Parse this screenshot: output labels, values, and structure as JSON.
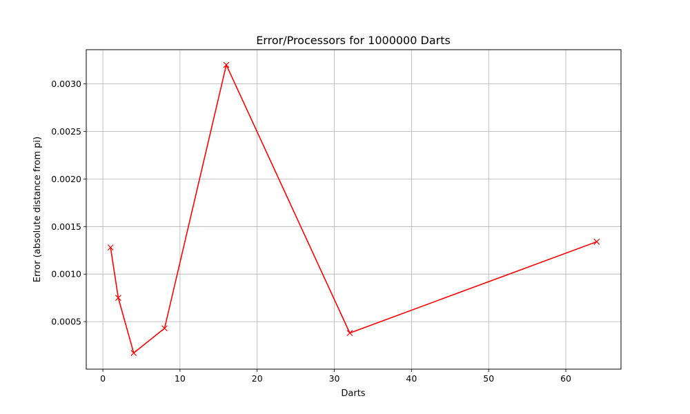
{
  "chart_data": {
    "type": "line",
    "title": "Error/Processors for 1000000 Darts",
    "xlabel": "Darts",
    "ylabel": "Error (absolute distance from pi)",
    "xlim": [
      -2.15,
      67.15
    ],
    "ylim": [
      0.0,
      0.00336
    ],
    "xticks": [
      0,
      10,
      20,
      30,
      40,
      50,
      60
    ],
    "xtick_labels": [
      "0",
      "10",
      "20",
      "30",
      "40",
      "50",
      "60"
    ],
    "yticks": [
      0.0005,
      0.001,
      0.0015,
      0.002,
      0.0025,
      0.003
    ],
    "ytick_labels": [
      "0.0005",
      "0.0010",
      "0.0015",
      "0.0020",
      "0.0025",
      "0.0030"
    ],
    "grid": true,
    "series": [
      {
        "color": "#ff0000",
        "marker": "x",
        "x": [
          1,
          2,
          4,
          8,
          16,
          32,
          64
        ],
        "y": [
          0.00128,
          0.00075,
          0.00017,
          0.00043,
          0.0032,
          0.00038,
          0.00134
        ]
      }
    ]
  }
}
